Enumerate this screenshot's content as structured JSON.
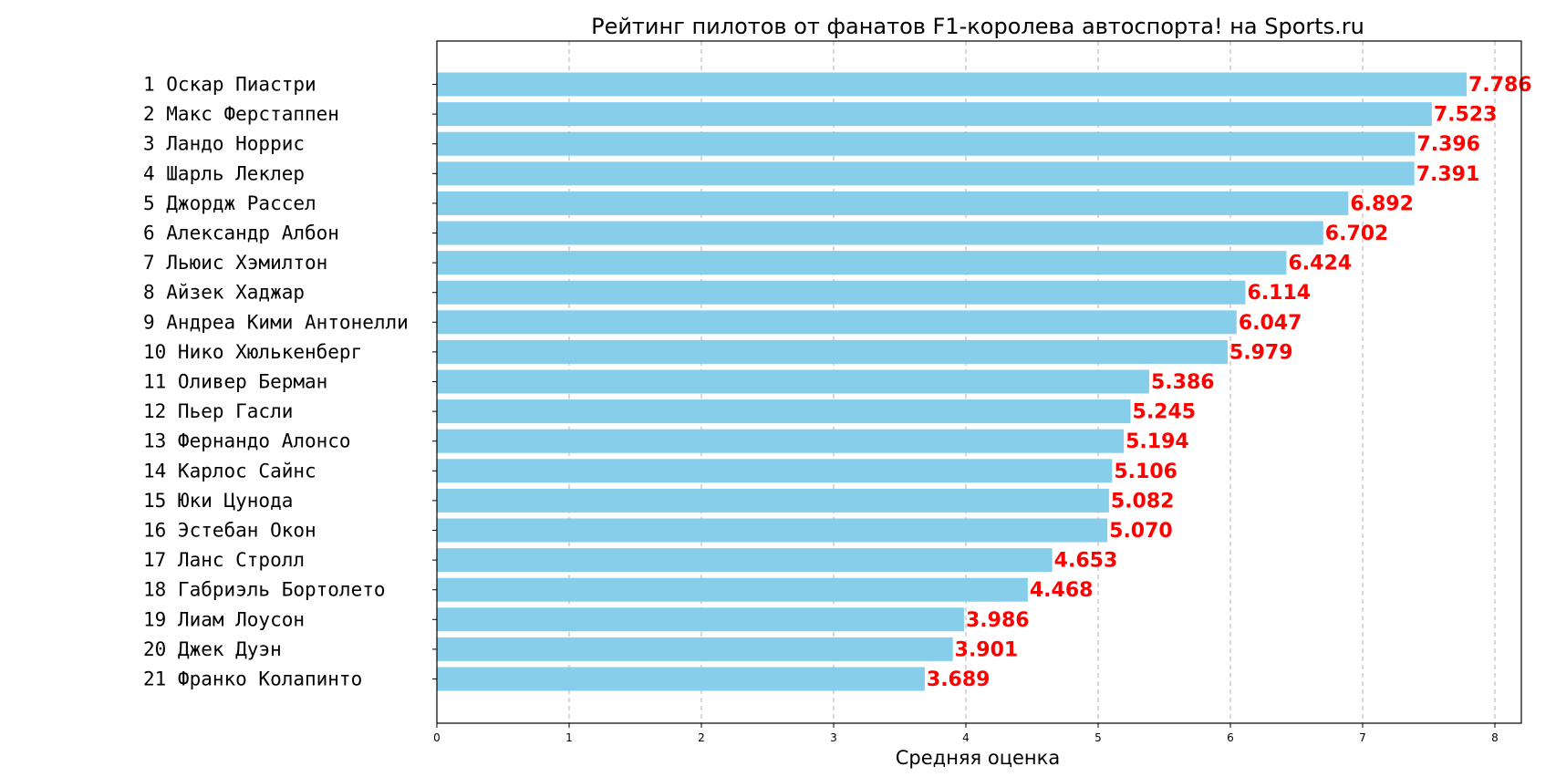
{
  "chart_data": {
    "type": "bar",
    "orientation": "horizontal",
    "title": "Рейтинг пилотов от фанатов F1-королева автоспорта! на Sports.ru",
    "xlabel": "Средняя оценка",
    "ylabel": "",
    "xlim": [
      0,
      8.2
    ],
    "xticks": [
      0,
      1,
      2,
      3,
      4,
      5,
      6,
      7,
      8
    ],
    "grid": "x, dashed",
    "bar_color": "#87ceeb",
    "label_color": "#ff0000",
    "categories": [
      "1 Оскар Пиастри",
      "2 Макс Ферстаппен",
      "3 Ландо Норрис",
      "4 Шарль Леклер",
      "5 Джордж Рассел",
      "6 Александр Албон",
      "7 Льюис Хэмилтон",
      "8 Айзек Хаджар",
      "9 Андреа Кими Антонелли",
      "10 Нико Хюлькенберг",
      "11 Оливер Берман",
      "12 Пьер Гасли",
      "13 Фернандо Алонсо",
      "14 Карлос Сайнс",
      "15 Юки Цунода",
      "16 Эстебан Окон",
      "17 Ланс Стролл",
      "18 Габриэль Бортолето",
      "19 Лиам Лоусон",
      "20 Джек Дуэн",
      "21 Франко Колапинто"
    ],
    "values": [
      7.786,
      7.523,
      7.396,
      7.391,
      6.892,
      6.702,
      6.424,
      6.114,
      6.047,
      5.979,
      5.386,
      5.245,
      5.194,
      5.106,
      5.082,
      5.07,
      4.653,
      4.468,
      3.986,
      3.901,
      3.689
    ],
    "value_labels": [
      "7.786",
      "7.523",
      "7.396",
      "7.391",
      "6.892",
      "6.702",
      "6.424",
      "6.114",
      "6.047",
      "5.979",
      "5.386",
      "5.245",
      "5.194",
      "5.106",
      "5.082",
      "5.070",
      "4.653",
      "4.468",
      "3.986",
      "3.901",
      "3.689"
    ]
  }
}
